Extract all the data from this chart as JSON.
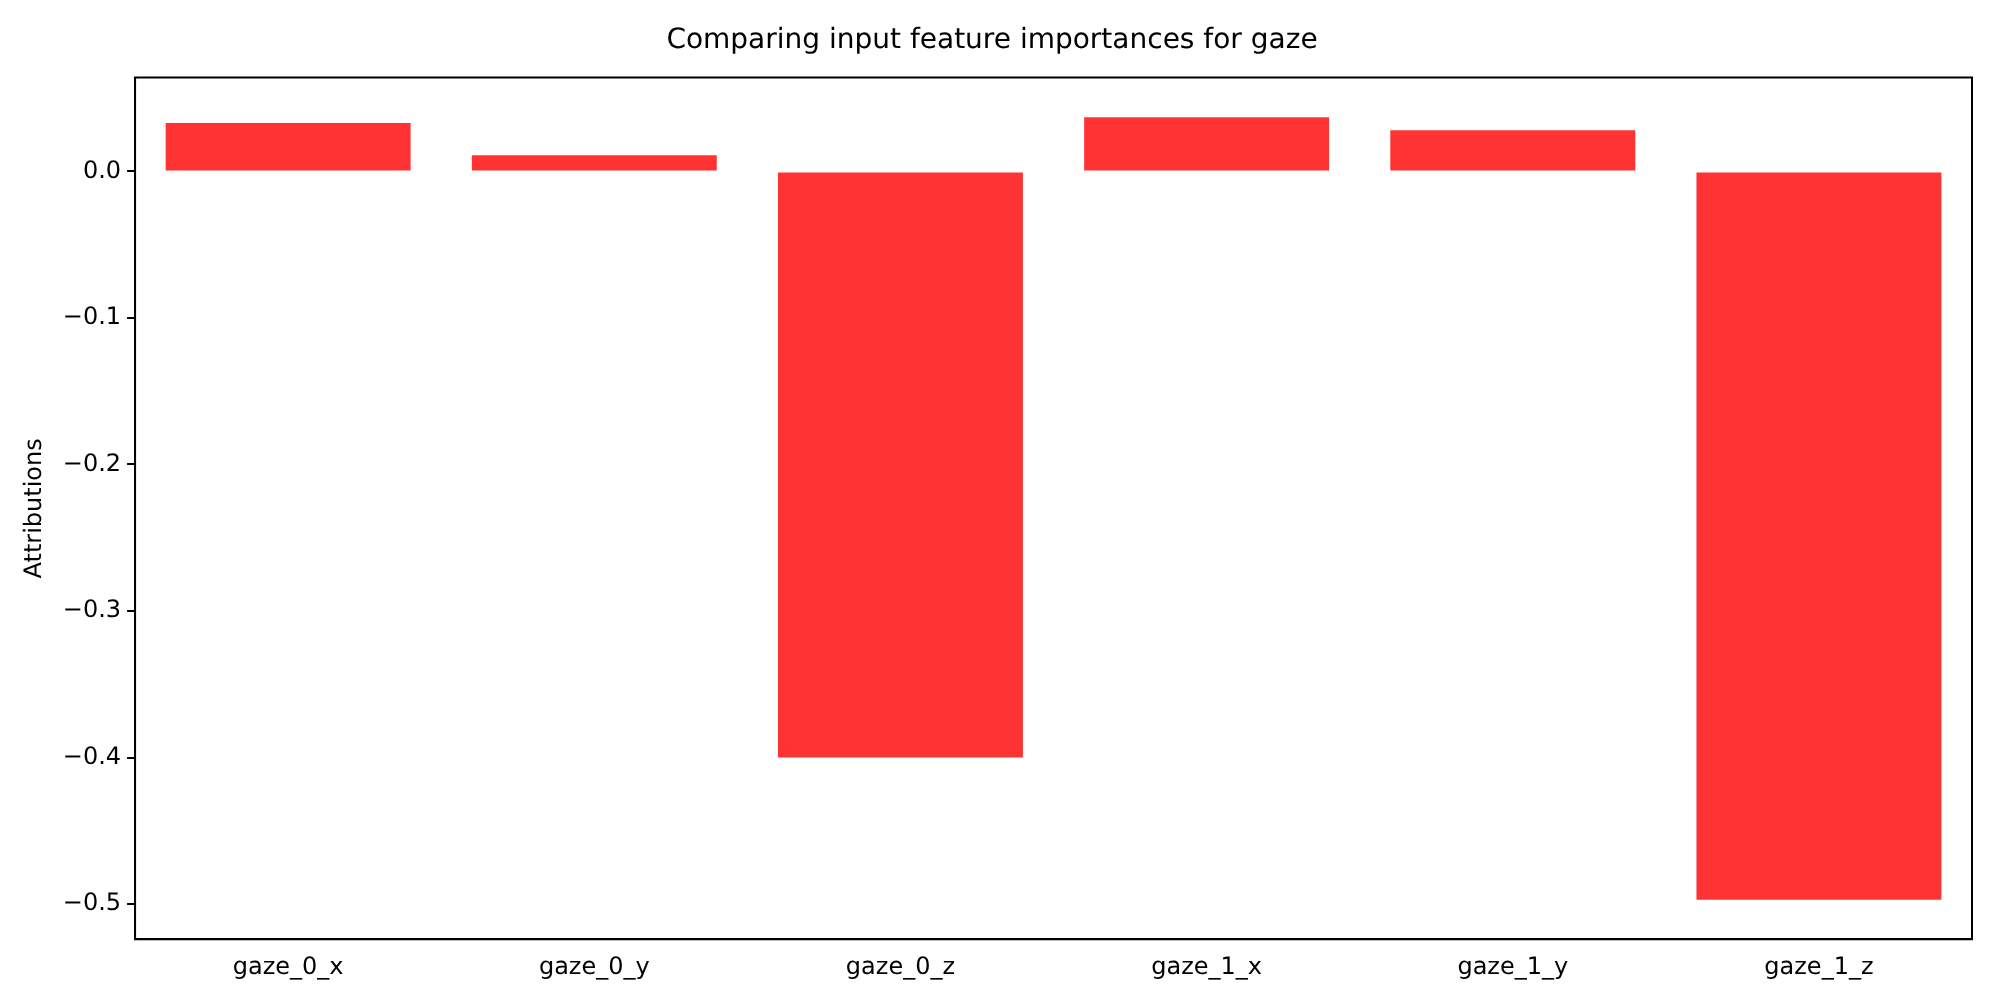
{
  "chart_data": {
    "type": "bar",
    "title": "Comparing input feature importances for gaze",
    "ylabel": "Attributions",
    "categories": [
      "gaze_0_x",
      "gaze_0_y",
      "gaze_0_z",
      "gaze_1_x",
      "gaze_1_y",
      "gaze_1_z"
    ],
    "values": [
      0.033,
      0.011,
      -0.4,
      0.037,
      0.028,
      -0.497
    ],
    "color": "#ff3333",
    "ylim": [
      -0.524,
      0.064
    ],
    "yticks": [
      {
        "value": -0.5,
        "label": "−0.5"
      },
      {
        "value": -0.4,
        "label": "−0.4"
      },
      {
        "value": -0.3,
        "label": "−0.3"
      },
      {
        "value": -0.2,
        "label": "−0.2"
      },
      {
        "value": -0.1,
        "label": "−0.1"
      },
      {
        "value": 0,
        "label": "0.0"
      }
    ],
    "grid": false
  }
}
